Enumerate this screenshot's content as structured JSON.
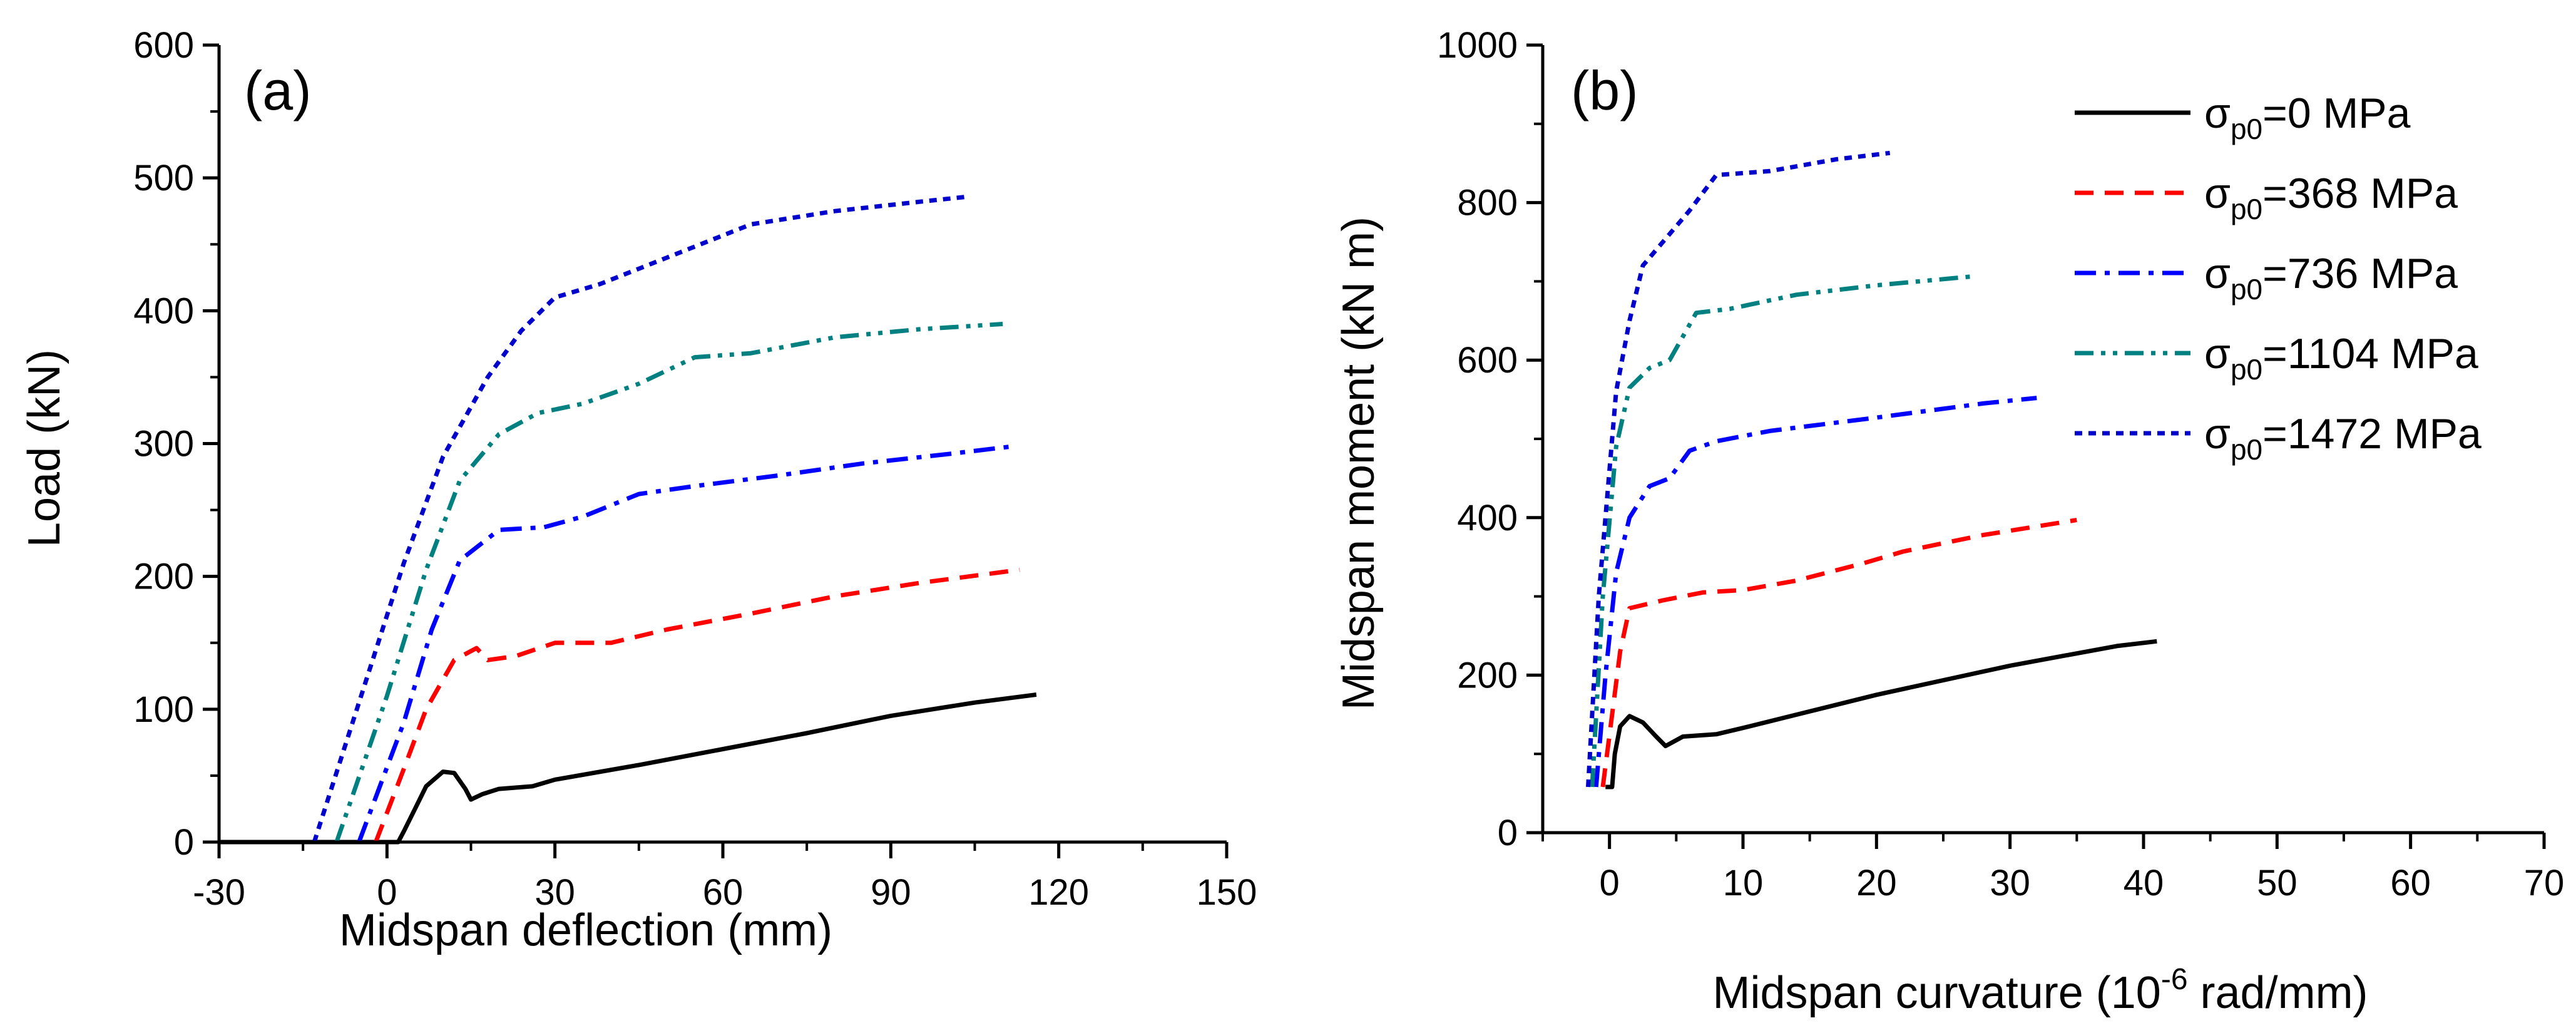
{
  "chart_data": [
    {
      "type": "line",
      "panel_label": "(a)",
      "xlabel": "Midspan deflection (mm)",
      "ylabel": "Load (kN)",
      "xlim": [
        -30,
        150
      ],
      "ylim": [
        0,
        600
      ],
      "xticks": [
        -30,
        0,
        30,
        60,
        90,
        120,
        150
      ],
      "yticks": [
        0,
        100,
        200,
        300,
        400,
        500,
        600
      ],
      "xtick_labels": [
        "-30",
        "0",
        "30",
        "60",
        "90",
        "120",
        "150"
      ],
      "ytick_labels": [
        "0",
        "100",
        "200",
        "300",
        "400",
        "500",
        "600"
      ],
      "grid": false,
      "legend": "none",
      "series": [
        {
          "color": "#000000",
          "dash": "solid",
          "points": [
            [
              -30,
              0
            ],
            [
              2,
              0
            ],
            [
              3,
              8
            ],
            [
              5,
              25
            ],
            [
              7,
              42
            ],
            [
              10,
              53
            ],
            [
              12,
              52
            ],
            [
              14,
              40
            ],
            [
              15,
              32
            ],
            [
              17,
              36
            ],
            [
              20,
              40
            ],
            [
              26,
              42
            ],
            [
              30,
              47
            ],
            [
              45,
              58
            ],
            [
              60,
              70
            ],
            [
              75,
              82
            ],
            [
              90,
              95
            ],
            [
              105,
              105
            ],
            [
              116,
              111
            ]
          ]
        },
        {
          "color": "#ff0000",
          "dash": "dashed",
          "points": [
            [
              -2,
              0
            ],
            [
              3,
              55
            ],
            [
              7,
              100
            ],
            [
              12,
              137
            ],
            [
              16,
              146
            ],
            [
              18,
              137
            ],
            [
              23,
              140
            ],
            [
              30,
              150
            ],
            [
              40,
              150
            ],
            [
              50,
              160
            ],
            [
              65,
              172
            ],
            [
              80,
              185
            ],
            [
              95,
              195
            ],
            [
              113,
              205
            ]
          ]
        },
        {
          "color": "#0000ff",
          "dash": "dashdot",
          "points": [
            [
              -5,
              0
            ],
            [
              3,
              90
            ],
            [
              8,
              160
            ],
            [
              13,
              212
            ],
            [
              20,
              235
            ],
            [
              28,
              237
            ],
            [
              35,
              245
            ],
            [
              45,
              262
            ],
            [
              55,
              268
            ],
            [
              70,
              276
            ],
            [
              85,
              285
            ],
            [
              100,
              292
            ],
            [
              112,
              298
            ]
          ]
        },
        {
          "color": "#008080",
          "dash": "dashdotdot",
          "points": [
            [
              -9,
              0
            ],
            [
              0,
              110
            ],
            [
              7,
              205
            ],
            [
              13,
              272
            ],
            [
              20,
              307
            ],
            [
              27,
              323
            ],
            [
              35,
              330
            ],
            [
              45,
              345
            ],
            [
              55,
              365
            ],
            [
              65,
              368
            ],
            [
              80,
              380
            ],
            [
              95,
              386
            ],
            [
              110,
              390
            ]
          ]
        },
        {
          "color": "#0000cc",
          "dash": "dotted",
          "points": [
            [
              -13,
              0
            ],
            [
              -5,
              105
            ],
            [
              3,
              210
            ],
            [
              10,
              290
            ],
            [
              18,
              350
            ],
            [
              24,
              385
            ],
            [
              30,
              410
            ],
            [
              38,
              420
            ],
            [
              50,
              440
            ],
            [
              65,
              465
            ],
            [
              80,
              475
            ],
            [
              95,
              482
            ],
            [
              104,
              486
            ]
          ]
        }
      ]
    },
    {
      "type": "line",
      "panel_label": "(b)",
      "xlabel": "Midspan curvature (10",
      "xlabel_sup": "-6",
      "xlabel_rest": " rad/mm)",
      "ylabel": "Midspan moment (kN m)",
      "xlim": [
        -5,
        70
      ],
      "ylim": [
        0,
        1000
      ],
      "xticks": [
        0,
        10,
        20,
        30,
        40,
        50,
        60,
        70
      ],
      "yticks": [
        0,
        200,
        400,
        600,
        800,
        1000
      ],
      "xtick_labels": [
        "0",
        "10",
        "20",
        "30",
        "40",
        "50",
        "60",
        "70"
      ],
      "ytick_labels": [
        "0",
        "200",
        "400",
        "600",
        "800",
        "1000"
      ],
      "grid": false,
      "legend": "top-right",
      "series": [
        {
          "name_base": "σ",
          "name_sub": "p0",
          "name_rest": "=0 MPa",
          "color": "#000000",
          "dash": "solid",
          "points": [
            [
              -0.3,
              58
            ],
            [
              0.2,
              58
            ],
            [
              0.4,
              100
            ],
            [
              0.8,
              135
            ],
            [
              1.5,
              148
            ],
            [
              2.5,
              140
            ],
            [
              3.5,
              122
            ],
            [
              4.2,
              110
            ],
            [
              5.5,
              122
            ],
            [
              8,
              125
            ],
            [
              10,
              133
            ],
            [
              20,
              175
            ],
            [
              30,
              212
            ],
            [
              38,
              237
            ],
            [
              41,
              243
            ]
          ]
        },
        {
          "name_base": "σ",
          "name_sub": "p0",
          "name_rest": "=368 MPa",
          "color": "#ff0000",
          "dash": "dashed",
          "points": [
            [
              -0.5,
              58
            ],
            [
              0.2,
              150
            ],
            [
              0.8,
              230
            ],
            [
              1.5,
              285
            ],
            [
              4,
              295
            ],
            [
              7,
              305
            ],
            [
              10,
              308
            ],
            [
              14,
              320
            ],
            [
              19,
              342
            ],
            [
              22,
              357
            ],
            [
              28,
              378
            ],
            [
              35,
              397
            ]
          ]
        },
        {
          "name_base": "σ",
          "name_sub": "p0",
          "name_rest": "=736 MPa",
          "color": "#0000ff",
          "dash": "dashdot",
          "points": [
            [
              -1,
              58
            ],
            [
              -0.3,
              200
            ],
            [
              0.5,
              330
            ],
            [
              1.5,
              400
            ],
            [
              3,
              440
            ],
            [
              4.5,
              450
            ],
            [
              6,
              485
            ],
            [
              8,
              497
            ],
            [
              12,
              510
            ],
            [
              20,
              527
            ],
            [
              28,
              545
            ],
            [
              32,
              552
            ]
          ]
        },
        {
          "name_base": "σ",
          "name_sub": "p0",
          "name_rest": "=1104 MPa",
          "color": "#008080",
          "dash": "dashdotdot",
          "points": [
            [
              -1.3,
              58
            ],
            [
              -0.5,
              300
            ],
            [
              0.5,
              490
            ],
            [
              1.5,
              565
            ],
            [
              3,
              590
            ],
            [
              4.5,
              600
            ],
            [
              6.5,
              660
            ],
            [
              9,
              665
            ],
            [
              14,
              683
            ],
            [
              20,
              695
            ],
            [
              27,
              706
            ]
          ]
        },
        {
          "name_base": "σ",
          "name_sub": "p0",
          "name_rest": "=1472 MPa",
          "color": "#0000cc",
          "dash": "dotted",
          "points": [
            [
              -1.6,
              58
            ],
            [
              -0.8,
              300
            ],
            [
              0.5,
              560
            ],
            [
              1.5,
              650
            ],
            [
              2.5,
              720
            ],
            [
              4,
              750
            ],
            [
              6,
              790
            ],
            [
              8,
              835
            ],
            [
              12,
              840
            ],
            [
              17,
              855
            ],
            [
              21,
              863
            ]
          ]
        }
      ]
    }
  ]
}
